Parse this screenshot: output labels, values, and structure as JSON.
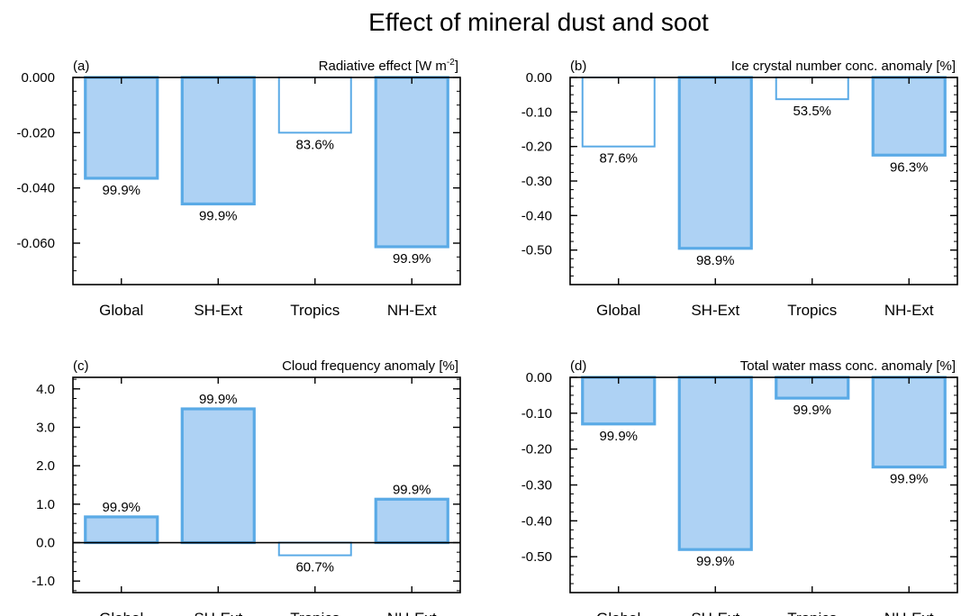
{
  "figure": {
    "title": "Effect of mineral dust and soot"
  },
  "colors": {
    "bar_fill": "#aed2f4",
    "bar_stroke": "#5aaae6",
    "axis": "#000000"
  },
  "chart_data": [
    {
      "type": "bar",
      "panel": "(a)",
      "title": "Radiative effect [W m-2]",
      "title_main": "Radiative effect [W m",
      "title_sup": "-2",
      "title_end": "]",
      "categories": [
        "Global",
        "SH-Ext",
        "Tropics",
        "NH-Ext"
      ],
      "values": [
        -0.0365,
        -0.0458,
        -0.02,
        -0.0613
      ],
      "filled": [
        true,
        true,
        false,
        true
      ],
      "labels": [
        "99.9%",
        "99.9%",
        "83.6%",
        "99.9%"
      ],
      "ylim": [
        -0.075,
        0.0
      ],
      "yticks": [
        0.0,
        -0.02,
        -0.04,
        -0.06
      ],
      "ytick_labels": [
        "0.000",
        "-0.020",
        "-0.040",
        "-0.060"
      ],
      "yminor_step": 0.005,
      "zero_line": false
    },
    {
      "type": "bar",
      "panel": "(b)",
      "title": "Ice crystal number conc. anomaly [%]",
      "categories": [
        "Global",
        "SH-Ext",
        "Tropics",
        "NH-Ext"
      ],
      "values": [
        -0.2,
        -0.495,
        -0.063,
        -0.225
      ],
      "filled": [
        false,
        true,
        false,
        true
      ],
      "labels": [
        "87.6%",
        "98.9%",
        "53.5%",
        "96.3%"
      ],
      "ylim": [
        -0.6,
        0.0
      ],
      "yticks": [
        0.0,
        -0.1,
        -0.2,
        -0.3,
        -0.4,
        -0.5
      ],
      "ytick_labels": [
        "0.00",
        "-0.10",
        "-0.20",
        "-0.30",
        "-0.40",
        "-0.50"
      ],
      "yminor_step": 0.025,
      "zero_line": false
    },
    {
      "type": "bar",
      "panel": "(c)",
      "title": "Cloud frequency anomaly [%]",
      "categories": [
        "Global",
        "SH-Ext",
        "Tropics",
        "NH-Ext"
      ],
      "values": [
        0.67,
        3.48,
        -0.33,
        1.13
      ],
      "filled": [
        true,
        true,
        false,
        true
      ],
      "labels": [
        "99.9%",
        "99.9%",
        "60.7%",
        "99.9%"
      ],
      "ylim": [
        -1.3,
        4.3
      ],
      "yticks": [
        4.0,
        3.0,
        2.0,
        1.0,
        0.0,
        -1.0
      ],
      "ytick_labels": [
        "4.0",
        "3.0",
        "2.0",
        "1.0",
        "0.0",
        "-1.0"
      ],
      "yminor_step": 0.25,
      "zero_line": true
    },
    {
      "type": "bar",
      "panel": "(d)",
      "title": "Total water mass conc. anomaly [%]",
      "categories": [
        "Global",
        "SH-Ext",
        "Tropics",
        "NH-Ext"
      ],
      "values": [
        -0.13,
        -0.48,
        -0.058,
        -0.25
      ],
      "filled": [
        true,
        true,
        true,
        true
      ],
      "labels": [
        "99.9%",
        "99.9%",
        "99.9%",
        "99.9%"
      ],
      "ylim": [
        -0.6,
        0.0
      ],
      "yticks": [
        0.0,
        -0.1,
        -0.2,
        -0.3,
        -0.4,
        -0.5
      ],
      "ytick_labels": [
        "0.00",
        "-0.10",
        "-0.20",
        "-0.30",
        "-0.40",
        "-0.50"
      ],
      "yminor_step": 0.025,
      "zero_line": false
    }
  ]
}
